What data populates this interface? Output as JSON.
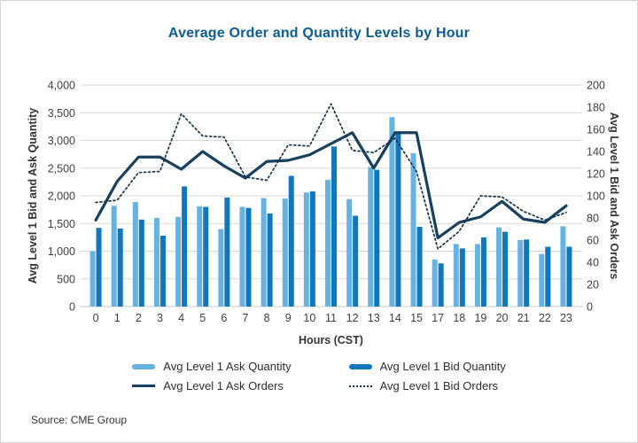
{
  "title": "Average Order and Quantity Levels by Hour",
  "source": "Source: CME Group",
  "colors": {
    "title": "#0d5c94",
    "ask_quantity_bar": "#66b3e3",
    "bid_quantity_bar": "#1076bd",
    "ask_orders_line": "#173f5e",
    "bid_orders_line": "#12344f",
    "gridline": "#d9d9d9",
    "baseline": "#c9c9c9"
  },
  "chart_data": {
    "type": "combo-bar-line",
    "grid": true,
    "legend_position": "bottom",
    "xlabel": "Hours (CST)",
    "categories": [
      "0",
      "1",
      "2",
      "3",
      "4",
      "5",
      "6",
      "7",
      "8",
      "9",
      "10",
      "11",
      "12",
      "13",
      "14",
      "15",
      "17",
      "18",
      "19",
      "20",
      "21",
      "22",
      "23"
    ],
    "left_axis": {
      "label": "Avg Level 1 Bid and Ask Quantity",
      "min": 0,
      "max": 4000,
      "step": 500,
      "tick_labels": [
        "0",
        "500",
        "1,000",
        "1,500",
        "2,000",
        "2,500",
        "3,000",
        "3,500",
        "4,000"
      ]
    },
    "right_axis": {
      "label": "Avg Level 1 Bid and Ask Orders",
      "min": 0,
      "max": 200,
      "step": 20,
      "tick_labels": [
        "0",
        "20",
        "40",
        "60",
        "80",
        "100",
        "120",
        "140",
        "160",
        "180",
        "200"
      ]
    },
    "series": [
      {
        "name": "Avg Level 1 Ask Quantity",
        "kind": "bar",
        "axis": "left",
        "color": "#66b3e3",
        "values": [
          1000,
          1820,
          1890,
          1600,
          1620,
          1810,
          1400,
          1800,
          1960,
          1950,
          2060,
          2290,
          1940,
          2520,
          3420,
          2770,
          850,
          1130,
          1130,
          1430,
          1200,
          950,
          1450
        ]
      },
      {
        "name": "Avg Level 1 Bid Quantity",
        "kind": "bar",
        "axis": "left",
        "color": "#1076bd",
        "values": [
          1420,
          1410,
          1570,
          1280,
          2170,
          1800,
          1970,
          1780,
          1680,
          2360,
          2080,
          2890,
          1640,
          2470,
          3160,
          1440,
          780,
          1050,
          1250,
          1350,
          1210,
          1080,
          1080
        ]
      },
      {
        "name": "Avg Level 1 Ask Orders",
        "kind": "line",
        "style": "solid",
        "axis": "right",
        "color": "#173f5e",
        "values": [
          78,
          113,
          135,
          135,
          124,
          140,
          127,
          116,
          131,
          132,
          137,
          147,
          157,
          125,
          157,
          157,
          62,
          76,
          81,
          95,
          79,
          76,
          91
        ]
      },
      {
        "name": "Avg Level 1 Bid Orders",
        "kind": "line",
        "style": "dotted",
        "axis": "right",
        "color": "#12344f",
        "values": [
          94,
          96,
          121,
          122,
          174,
          154,
          153,
          117,
          114,
          146,
          145,
          183,
          141,
          139,
          152,
          122,
          52,
          68,
          100,
          99,
          86,
          78,
          85
        ]
      }
    ]
  },
  "legend": {
    "items": [
      {
        "label": "Avg Level 1 Ask Quantity"
      },
      {
        "label": "Avg Level 1 Bid Quantity"
      },
      {
        "label": "Avg Level 1 Ask Orders"
      },
      {
        "label": "Avg Level 1 Bid Orders"
      }
    ]
  }
}
